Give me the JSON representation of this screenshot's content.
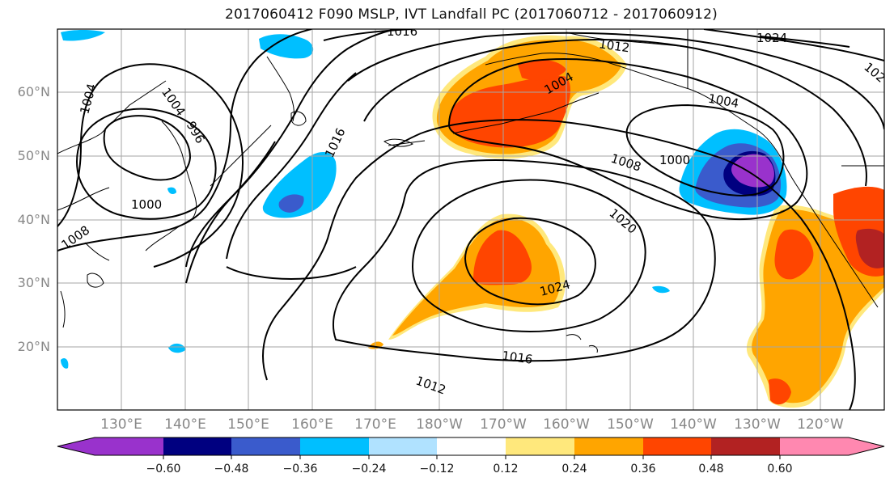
{
  "title": "2017060412 F090 MSLP, IVT Landfall PC (2017060712 - 2017060912)",
  "lat_labels": [
    "60°N",
    "50°N",
    "40°N",
    "30°N",
    "20°N"
  ],
  "lon_labels": [
    "130°E",
    "140°E",
    "150°E",
    "160°E",
    "170°E",
    "180°W",
    "170°W",
    "160°W",
    "150°W",
    "140°W",
    "130°W",
    "120°W"
  ],
  "contour_labels": [
    "1016",
    "1012",
    "1024",
    "1004",
    "1004",
    "1004",
    "1016",
    "1008",
    "1000",
    "1020",
    "1024",
    "1016",
    "1012",
    "1000",
    "1008",
    "1004",
    "996",
    "102"
  ],
  "colorbar": {
    "labels": [
      "−0.60",
      "−0.48",
      "−0.36",
      "−0.24",
      "−0.12",
      "0.12",
      "0.24",
      "0.36",
      "0.48",
      "0.60"
    ],
    "colors": [
      "#9932cc",
      "#000080",
      "#3a5bcc",
      "#00bfff",
      "#b0e2ff",
      "#ffffff",
      "#ffe87c",
      "#ffa500",
      "#ff4500",
      "#b22222",
      "#ff88b0"
    ]
  }
}
